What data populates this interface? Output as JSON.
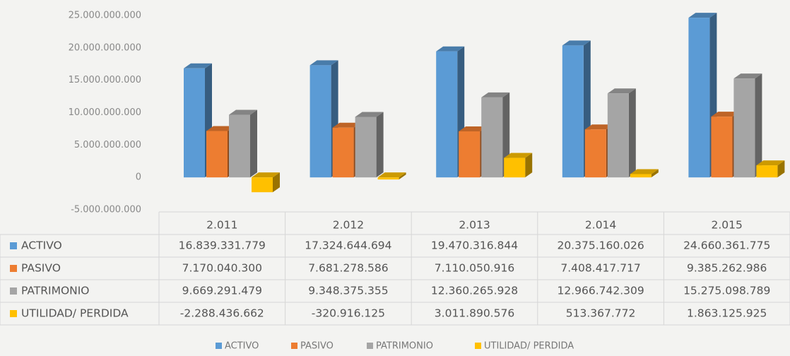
{
  "chart_data": {
    "type": "bar",
    "categories": [
      "2.011",
      "2.012",
      "2.013",
      "2.014",
      "2.015"
    ],
    "series": [
      {
        "name": "ACTIVO",
        "color": "#5b9bd5",
        "values": [
          16839331779,
          17324644694,
          19470316844,
          20375160026,
          24660361775
        ],
        "value_labels": [
          "16.839.331.779",
          "17.324.644.694",
          "19.470.316.844",
          "20.375.160.026",
          "24.660.361.775"
        ]
      },
      {
        "name": "PASIVO",
        "color": "#ed7d31",
        "values": [
          7170040300,
          7681278586,
          7110050916,
          7408417717,
          9385262986
        ],
        "value_labels": [
          "7.170.040.300",
          "7.681.278.586",
          "7.110.050.916",
          "7.408.417.717",
          "9.385.262.986"
        ]
      },
      {
        "name": "PATRIMONIO",
        "color": "#a5a5a5",
        "values": [
          9669291479,
          9348375355,
          12360265928,
          12966742309,
          15275098789
        ],
        "value_labels": [
          "9.669.291.479",
          "9.348.375.355",
          "12.360.265.928",
          "12.966.742.309",
          "15.275.098.789"
        ]
      },
      {
        "name": "UTILIDAD/ PERDIDA",
        "color": "#ffc000",
        "values": [
          -2288436662,
          -320916125,
          3011890576,
          513367772,
          1863125925
        ],
        "value_labels": [
          "-2.288.436.662",
          "-320.916.125",
          "3.011.890.576",
          "513.367.772",
          "1.863.125.925"
        ]
      }
    ],
    "ylim": [
      -5000000000,
      25000000000
    ],
    "yticks": [
      {
        "value": -5000000000,
        "label": "-5.000.000.000"
      },
      0,
      {
        "value": 5000000000,
        "label": "5.000.000.000"
      },
      {
        "value": 10000000000,
        "label": "10.000.000.000"
      },
      {
        "value": 15000000000,
        "label": "15.000.000.000"
      },
      {
        "value": 20000000000,
        "label": "20.000.000.000"
      },
      {
        "value": 25000000000,
        "label": "25.000.000.000"
      }
    ],
    "grid": false
  }
}
